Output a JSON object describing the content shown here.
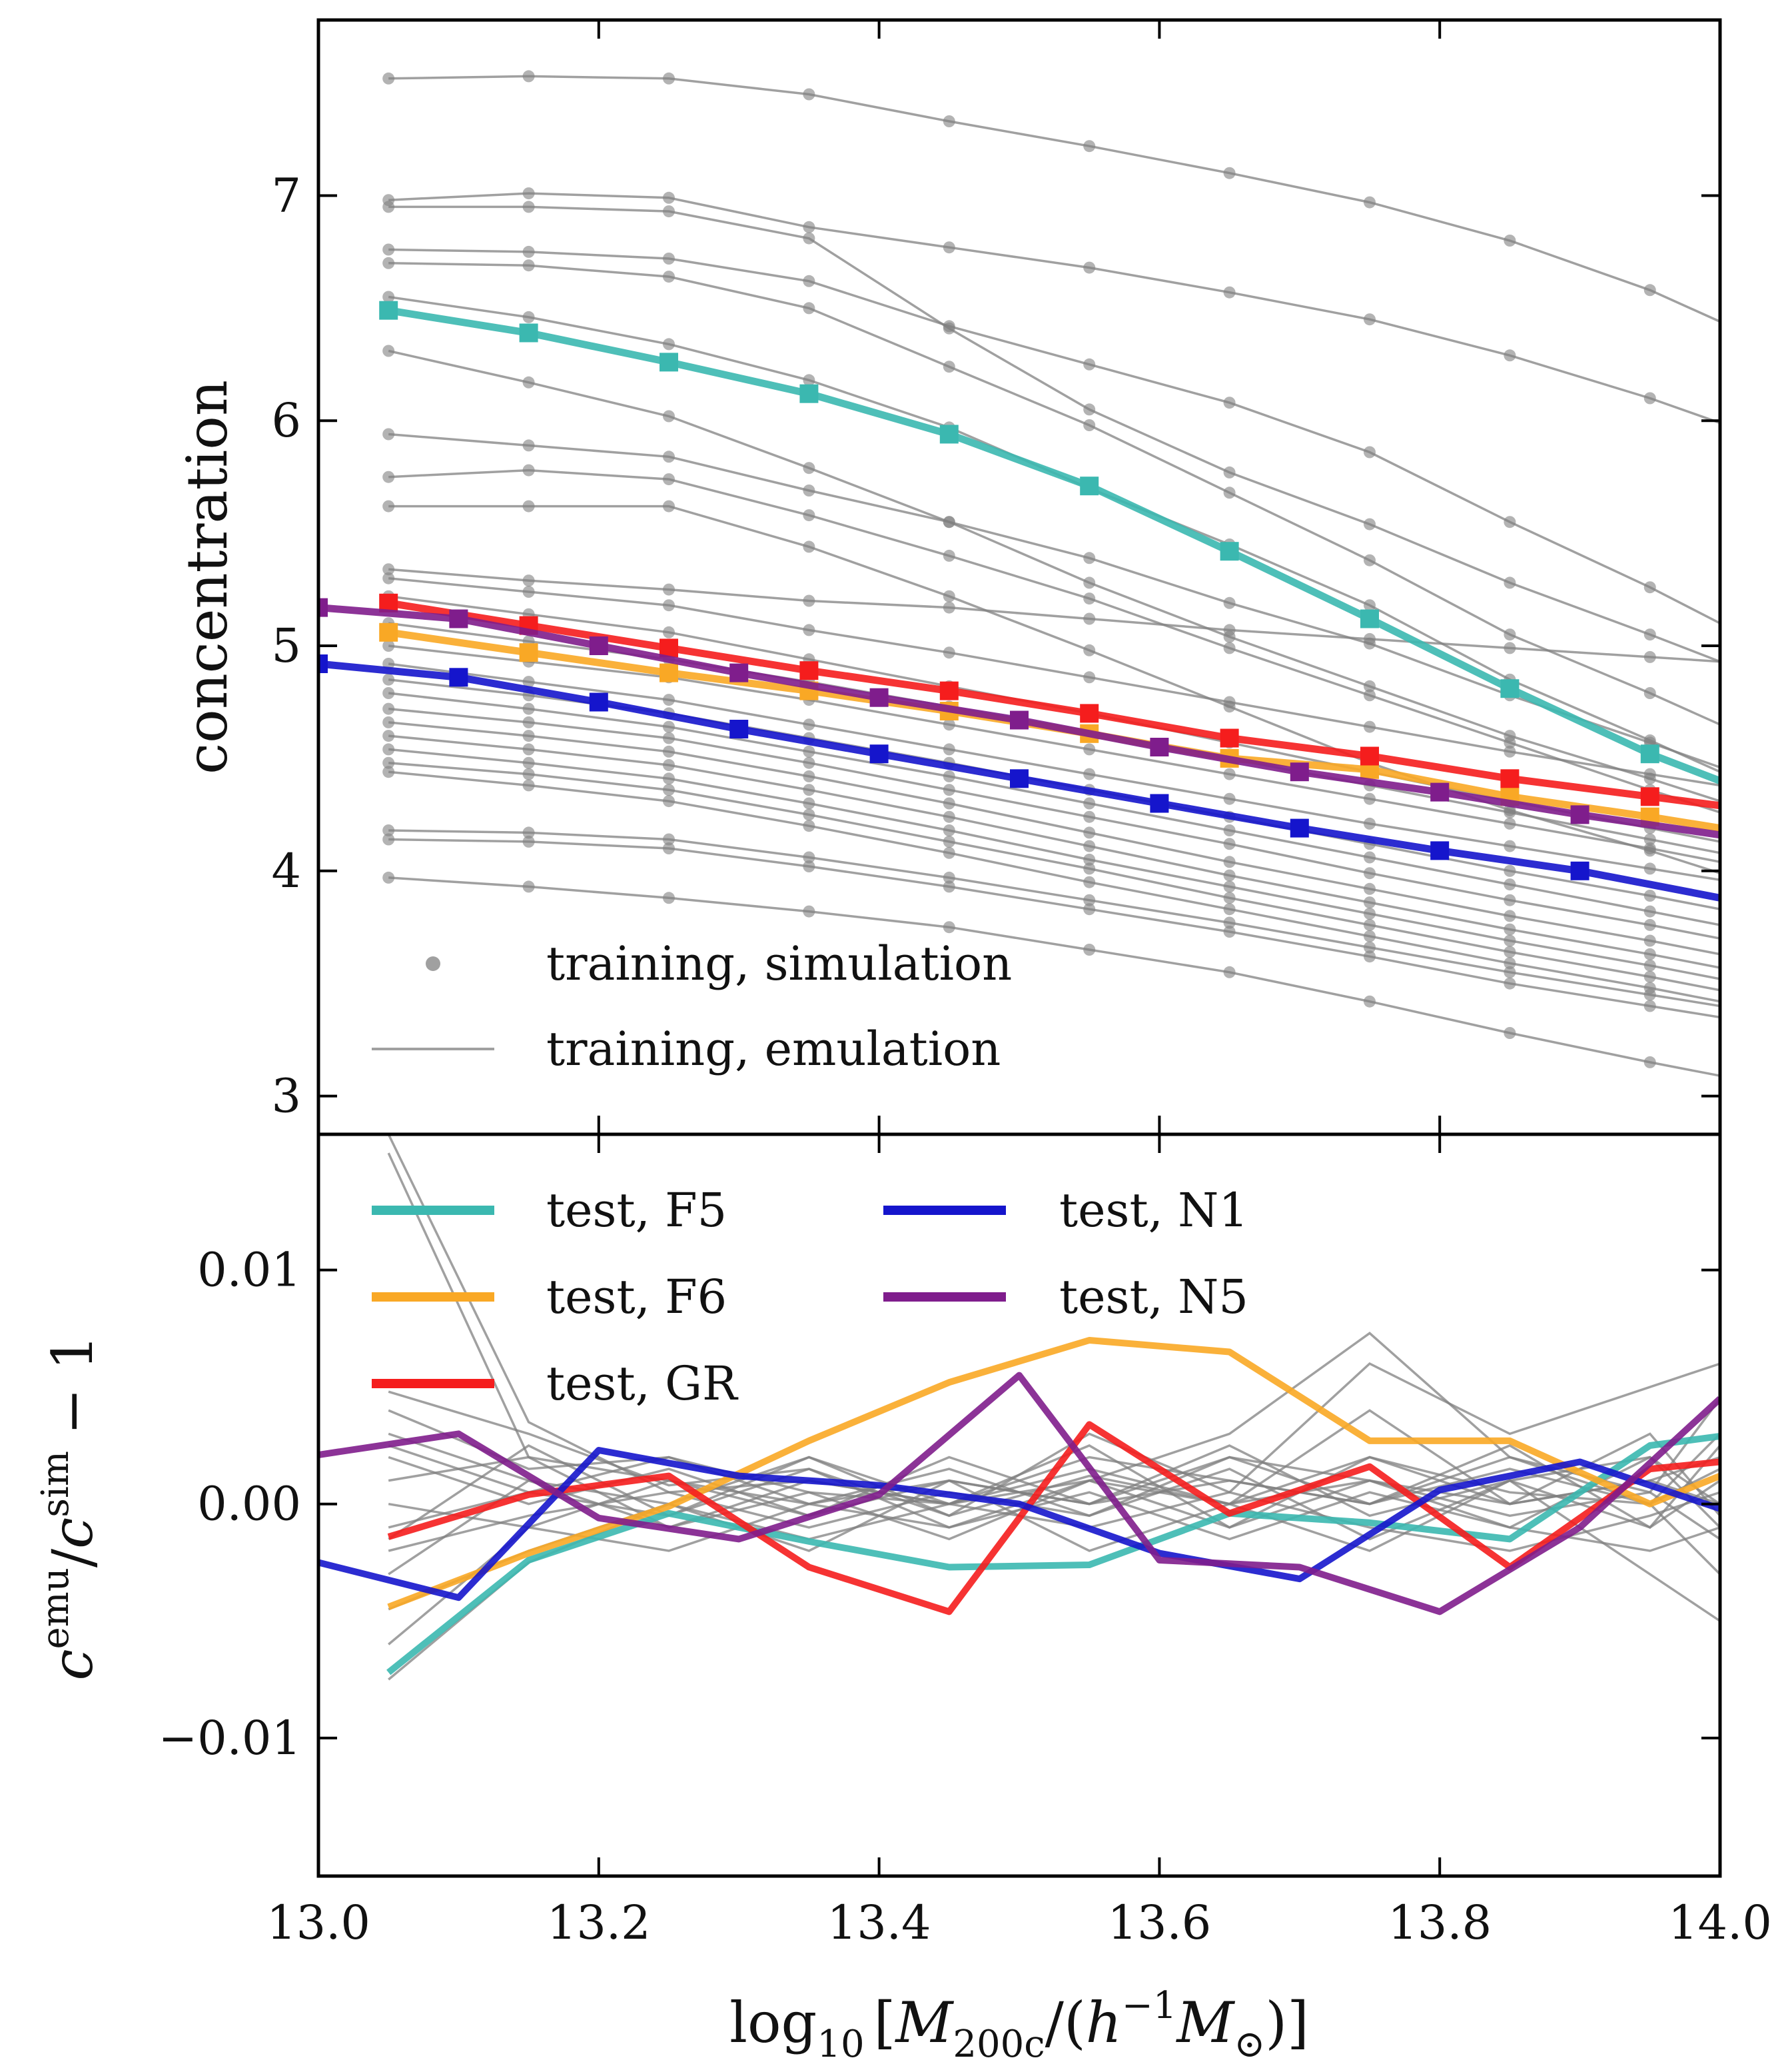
{
  "chart_data": [
    {
      "type": "line",
      "panel": "top",
      "ylabel": "concentration",
      "xlim": [
        13.0,
        14.0
      ],
      "ylim": [
        2.83,
        7.78
      ],
      "yticks": [
        3,
        4,
        5,
        6,
        7
      ],
      "ytick_labels": [
        "3",
        "4",
        "5",
        "6",
        "7"
      ],
      "xticks": [
        13.0,
        13.2,
        13.4,
        13.6,
        13.8,
        14.0
      ],
      "legend": {
        "placement": "lower-left",
        "entries": [
          {
            "label": "training, simulation",
            "style": "marker"
          },
          {
            "label": "training, emulation",
            "style": "line"
          }
        ]
      },
      "training_x": [
        13.05,
        13.15,
        13.25,
        13.35,
        13.45,
        13.55,
        13.65,
        13.75,
        13.85,
        13.95,
        14.0
      ],
      "training_series": [
        [
          7.52,
          7.53,
          7.52,
          7.45,
          7.33,
          7.22,
          7.1,
          6.97,
          6.8,
          6.58,
          6.44
        ],
        [
          6.98,
          7.01,
          6.99,
          6.86,
          6.77,
          6.68,
          6.57,
          6.45,
          6.29,
          6.1,
          5.99
        ],
        [
          6.95,
          6.95,
          6.93,
          6.81,
          6.41,
          6.05,
          5.77,
          5.54,
          5.28,
          5.05,
          4.93
        ],
        [
          6.76,
          6.75,
          6.72,
          6.62,
          6.42,
          6.25,
          6.08,
          5.86,
          5.55,
          5.26,
          5.1
        ],
        [
          6.7,
          6.69,
          6.64,
          6.5,
          6.24,
          5.98,
          5.68,
          5.38,
          5.05,
          4.79,
          4.65
        ],
        [
          6.55,
          6.46,
          6.34,
          6.18,
          5.97,
          5.7,
          5.45,
          5.18,
          4.85,
          4.58,
          4.44
        ],
        [
          6.31,
          6.17,
          6.02,
          5.79,
          5.55,
          5.28,
          5.04,
          4.82,
          4.6,
          4.41,
          4.31
        ],
        [
          5.94,
          5.89,
          5.84,
          5.69,
          5.55,
          5.39,
          5.19,
          5.01,
          4.78,
          4.57,
          4.46
        ],
        [
          5.75,
          5.78,
          5.74,
          5.58,
          5.4,
          5.21,
          4.99,
          4.78,
          4.57,
          4.36,
          4.26
        ],
        [
          5.62,
          5.62,
          5.62,
          5.44,
          5.22,
          4.98,
          4.73,
          4.48,
          4.27,
          4.09,
          3.99
        ],
        [
          5.34,
          5.29,
          5.25,
          5.2,
          5.17,
          5.12,
          5.07,
          5.03,
          4.99,
          4.95,
          4.93
        ],
        [
          5.3,
          5.24,
          5.18,
          5.07,
          4.97,
          4.86,
          4.75,
          4.64,
          4.53,
          4.43,
          4.38
        ],
        [
          5.22,
          5.14,
          5.06,
          4.94,
          4.82,
          4.7,
          4.57,
          4.44,
          4.31,
          4.19,
          4.13
        ],
        [
          5.1,
          5.02,
          4.94,
          4.84,
          4.73,
          4.62,
          4.5,
          4.38,
          4.26,
          4.14,
          4.08
        ],
        [
          5.0,
          4.93,
          4.86,
          4.76,
          4.65,
          4.54,
          4.43,
          4.32,
          4.21,
          4.1,
          4.04
        ],
        [
          4.92,
          4.84,
          4.76,
          4.65,
          4.54,
          4.43,
          4.32,
          4.21,
          4.11,
          4.01,
          3.96
        ],
        [
          4.85,
          4.78,
          4.7,
          4.59,
          4.48,
          4.36,
          4.24,
          4.12,
          4.0,
          3.89,
          3.83
        ],
        [
          4.79,
          4.72,
          4.64,
          4.53,
          4.42,
          4.3,
          4.18,
          4.06,
          3.94,
          3.82,
          3.76
        ],
        [
          4.72,
          4.66,
          4.59,
          4.48,
          4.36,
          4.24,
          4.12,
          3.99,
          3.87,
          3.76,
          3.7
        ],
        [
          4.66,
          4.6,
          4.53,
          4.42,
          4.3,
          4.17,
          4.04,
          3.92,
          3.8,
          3.69,
          3.63
        ],
        [
          4.6,
          4.54,
          4.47,
          4.36,
          4.24,
          4.11,
          3.98,
          3.86,
          3.74,
          3.63,
          3.57
        ],
        [
          4.54,
          4.48,
          4.41,
          4.3,
          4.18,
          4.05,
          3.93,
          3.81,
          3.69,
          3.58,
          3.52
        ],
        [
          4.48,
          4.43,
          4.36,
          4.25,
          4.13,
          4.01,
          3.88,
          3.76,
          3.64,
          3.53,
          3.47
        ],
        [
          4.44,
          4.38,
          4.31,
          4.2,
          4.08,
          3.95,
          3.83,
          3.71,
          3.59,
          3.48,
          3.42
        ],
        [
          4.18,
          4.17,
          4.14,
          4.06,
          3.97,
          3.87,
          3.77,
          3.66,
          3.55,
          3.45,
          3.4
        ],
        [
          4.14,
          4.13,
          4.1,
          4.02,
          3.93,
          3.83,
          3.73,
          3.62,
          3.5,
          3.4,
          3.35
        ],
        [
          3.97,
          3.93,
          3.88,
          3.82,
          3.75,
          3.65,
          3.55,
          3.42,
          3.28,
          3.15,
          3.09
        ]
      ],
      "test_series": [
        {
          "name": "test, F5",
          "color": "#3bb8b0",
          "x": [
            13.05,
            13.15,
            13.25,
            13.35,
            13.45,
            13.55,
            13.65,
            13.75,
            13.85,
            13.95,
            14.0
          ],
          "values": [
            6.49,
            6.39,
            6.26,
            6.12,
            5.94,
            5.71,
            5.42,
            5.12,
            4.81,
            4.52,
            4.4
          ]
        },
        {
          "name": "test, F6",
          "color": "#f9a825",
          "x": [
            13.05,
            13.15,
            13.25,
            13.35,
            13.45,
            13.55,
            13.65,
            13.75,
            13.85,
            13.95,
            14.0
          ],
          "values": [
            5.06,
            4.97,
            4.88,
            4.8,
            4.71,
            4.61,
            4.5,
            4.45,
            4.33,
            4.24,
            4.19
          ]
        },
        {
          "name": "test, GR",
          "color": "#f51d1d",
          "x": [
            13.05,
            13.15,
            13.25,
            13.35,
            13.45,
            13.55,
            13.65,
            13.75,
            13.85,
            13.95,
            14.0
          ],
          "values": [
            5.19,
            5.09,
            4.99,
            4.89,
            4.8,
            4.7,
            4.59,
            4.51,
            4.41,
            4.33,
            4.29
          ]
        },
        {
          "name": "test, N1",
          "color": "#1515cc",
          "x": [
            13.0,
            13.1,
            13.2,
            13.3,
            13.4,
            13.5,
            13.6,
            13.7,
            13.8,
            13.9,
            14.0
          ],
          "values": [
            4.92,
            4.86,
            4.75,
            4.63,
            4.52,
            4.41,
            4.3,
            4.19,
            4.09,
            4.0,
            3.88
          ]
        },
        {
          "name": "test, N5",
          "color": "#7f1d8c",
          "x": [
            13.0,
            13.1,
            13.2,
            13.3,
            13.4,
            13.5,
            13.6,
            13.7,
            13.8,
            13.9,
            14.0
          ],
          "values": [
            5.17,
            5.12,
            5.0,
            4.88,
            4.77,
            4.67,
            4.55,
            4.44,
            4.35,
            4.25,
            4.16
          ]
        }
      ]
    },
    {
      "type": "line",
      "panel": "bottom",
      "ylabel": "c^emu / c^sim − 1",
      "ylabel_parts": {
        "base": "c",
        "sup_num": "emu",
        "slash": "/",
        "base2": "c",
        "sup_den": "sim",
        "tail": "− 1"
      },
      "xlabel": "log10 [M200c/(h−1M⊙)]",
      "xlabel_parts": {
        "log": "log",
        "log_sub": "10",
        "open": "[",
        "m": "M",
        "m_sub": "200c",
        "mid": "/(",
        "h": "h",
        "h_sup": "−1",
        "m2": "M",
        "m2_sub": "⊙",
        "close": ")]"
      },
      "xlim": [
        13.0,
        14.0
      ],
      "ylim": [
        -0.0159,
        0.0158
      ],
      "yticks": [
        -0.01,
        0.0,
        0.01
      ],
      "ytick_labels": [
        "−0.01",
        "0.00",
        "0.01"
      ],
      "xticks": [
        13.0,
        13.2,
        13.4,
        13.6,
        13.8,
        14.0
      ],
      "xtick_labels": [
        "13.0",
        "13.2",
        "13.4",
        "13.6",
        "13.8",
        "14.0"
      ],
      "legend": {
        "placement": "upper-left",
        "columns": 2,
        "entries": [
          {
            "label": "test, F5",
            "color": "#3bb8b0"
          },
          {
            "label": "test, N1",
            "color": "#1515cc"
          },
          {
            "label": "test, F6",
            "color": "#f9a825"
          },
          {
            "label": "test, N5",
            "color": "#7f1d8c"
          },
          {
            "label": "test, GR",
            "color": "#f51d1d"
          }
        ]
      },
      "training_x": [
        13.05,
        13.15,
        13.25,
        13.35,
        13.45,
        13.55,
        13.65,
        13.75,
        13.85,
        13.95,
        14.0
      ],
      "training_series": [
        [
          0.0158,
          0.0035,
          0.0005,
          0.001,
          0.0,
          0.002,
          0.001,
          0.0,
          0.002,
          0.0,
          -0.003
        ],
        [
          0.015,
          0.002,
          0.001,
          -0.0005,
          0.001,
          0.0,
          0.002,
          0.001,
          0.0,
          0.001,
          0.0
        ],
        [
          0.0048,
          0.003,
          0.0008,
          0.0015,
          -0.0005,
          0.0012,
          0.0,
          0.002,
          0.0005,
          0.0,
          0.0015
        ],
        [
          0.004,
          0.0015,
          0.002,
          0.0,
          0.001,
          0.0,
          0.0025,
          -0.0005,
          0.001,
          0.002,
          -0.001
        ],
        [
          0.003,
          0.001,
          0.0,
          0.002,
          0.0,
          0.0015,
          0.0,
          0.004,
          0.0,
          0.001,
          0.002
        ],
        [
          0.002,
          0.0,
          0.0015,
          -0.0005,
          0.002,
          0.0,
          0.001,
          0.0,
          0.0025,
          -0.001,
          0.001
        ],
        [
          0.001,
          0.002,
          -0.001,
          0.001,
          0.0,
          0.0025,
          -0.001,
          0.002,
          0.0,
          0.003,
          -0.0005
        ],
        [
          0.0,
          -0.001,
          0.001,
          0.0,
          0.0015,
          -0.0005,
          0.002,
          0.0,
          0.0015,
          0.0,
          0.003
        ],
        [
          -0.001,
          0.0005,
          -0.0005,
          0.0015,
          -0.001,
          0.001,
          0.0,
          0.001,
          -0.001,
          0.002,
          0.0
        ],
        [
          -0.002,
          -0.0005,
          0.0005,
          -0.001,
          0.0005,
          -0.0005,
          0.0015,
          -0.0015,
          0.001,
          -0.001,
          0.0025
        ],
        [
          -0.003,
          0.001,
          -0.001,
          0.0005,
          -0.0015,
          0.001,
          -0.001,
          0.001,
          -0.0005,
          0.0005,
          -0.0015
        ],
        [
          -0.0045,
          -0.002,
          0.0,
          -0.0015,
          0.0,
          -0.001,
          0.0005,
          -0.001,
          -0.002,
          -0.0005,
          0.0005
        ],
        [
          -0.006,
          -0.001,
          -0.002,
          0.0,
          -0.001,
          0.0005,
          -0.0015,
          0.0005,
          -0.001,
          -0.002,
          -0.001
        ],
        [
          -0.0075,
          -0.0025,
          0.0,
          -0.002,
          0.001,
          -0.002,
          0.0,
          -0.002,
          0.001,
          -0.003,
          -0.005
        ],
        [
          0.0025,
          0.0005,
          0.002,
          0.0005,
          0.0,
          0.001,
          0.003,
          0.0073,
          0.002,
          0.0005,
          0.0045
        ],
        [
          -0.0015,
          0.0025,
          -0.0005,
          0.002,
          -0.0005,
          0.003,
          0.0005,
          0.006,
          0.003,
          0.005,
          0.006
        ]
      ],
      "test_series": [
        {
          "name": "test, F5",
          "color": "#3bb8b0",
          "x": [
            13.05,
            13.15,
            13.25,
            13.35,
            13.45,
            13.55,
            13.65,
            13.75,
            13.85,
            13.95,
            14.0
          ],
          "values": [
            -0.0072,
            -0.0024,
            -0.0004,
            -0.0016,
            -0.0027,
            -0.0026,
            -0.0004,
            -0.0008,
            -0.0015,
            0.0025,
            0.0029
          ]
        },
        {
          "name": "test, F6",
          "color": "#f9a825",
          "x": [
            13.05,
            13.15,
            13.25,
            13.35,
            13.45,
            13.55,
            13.65,
            13.75,
            13.85,
            13.95,
            14.0
          ],
          "values": [
            -0.0044,
            -0.0021,
            -0.0001,
            0.0027,
            0.0052,
            0.007,
            0.0065,
            0.0027,
            0.0027,
            0.0,
            0.0012
          ]
        },
        {
          "name": "test, GR",
          "color": "#f51d1d",
          "x": [
            13.05,
            13.15,
            13.25,
            13.35,
            13.45,
            13.55,
            13.65,
            13.75,
            13.85,
            13.95,
            14.0
          ],
          "values": [
            -0.0014,
            0.0004,
            0.0012,
            -0.0027,
            -0.0046,
            0.0034,
            -0.0004,
            0.0016,
            -0.0027,
            0.0015,
            0.0018
          ]
        },
        {
          "name": "test, N1",
          "color": "#1515cc",
          "x": [
            13.0,
            13.1,
            13.2,
            13.3,
            13.4,
            13.5,
            13.6,
            13.7,
            13.8,
            13.9,
            14.0
          ],
          "values": [
            -0.0025,
            -0.004,
            0.0023,
            0.0012,
            0.0008,
            0.0,
            -0.0021,
            -0.0032,
            0.0006,
            0.0018,
            -0.0002
          ]
        },
        {
          "name": "test, N5",
          "color": "#7f1d8c",
          "x": [
            13.0,
            13.1,
            13.2,
            13.3,
            13.4,
            13.5,
            13.6,
            13.7,
            13.8,
            13.9,
            14.0
          ],
          "values": [
            0.0021,
            0.003,
            -0.0006,
            -0.0015,
            0.0004,
            0.0055,
            -0.0024,
            -0.0027,
            -0.0046,
            -0.001,
            0.0045
          ]
        }
      ]
    }
  ]
}
